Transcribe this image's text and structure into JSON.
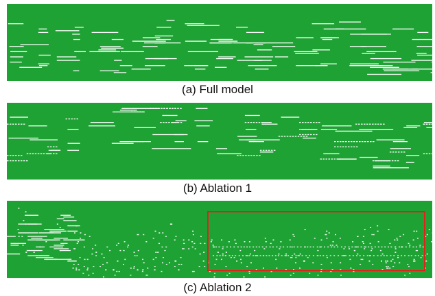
{
  "background_color": "#1fa234",
  "note_color": "#ffffff",
  "highlight_color": "#e0221c",
  "panels": [
    {
      "id": "a",
      "caption": "(a) Full model",
      "style": "lines",
      "seed": 11
    },
    {
      "id": "b",
      "caption": "(b) Ablation 1",
      "style": "lines-dashed",
      "seed": 29
    },
    {
      "id": "c",
      "caption": "(c) Ablation 2",
      "style": "dotted",
      "seed": 53,
      "has_highlight_box": true
    }
  ]
}
